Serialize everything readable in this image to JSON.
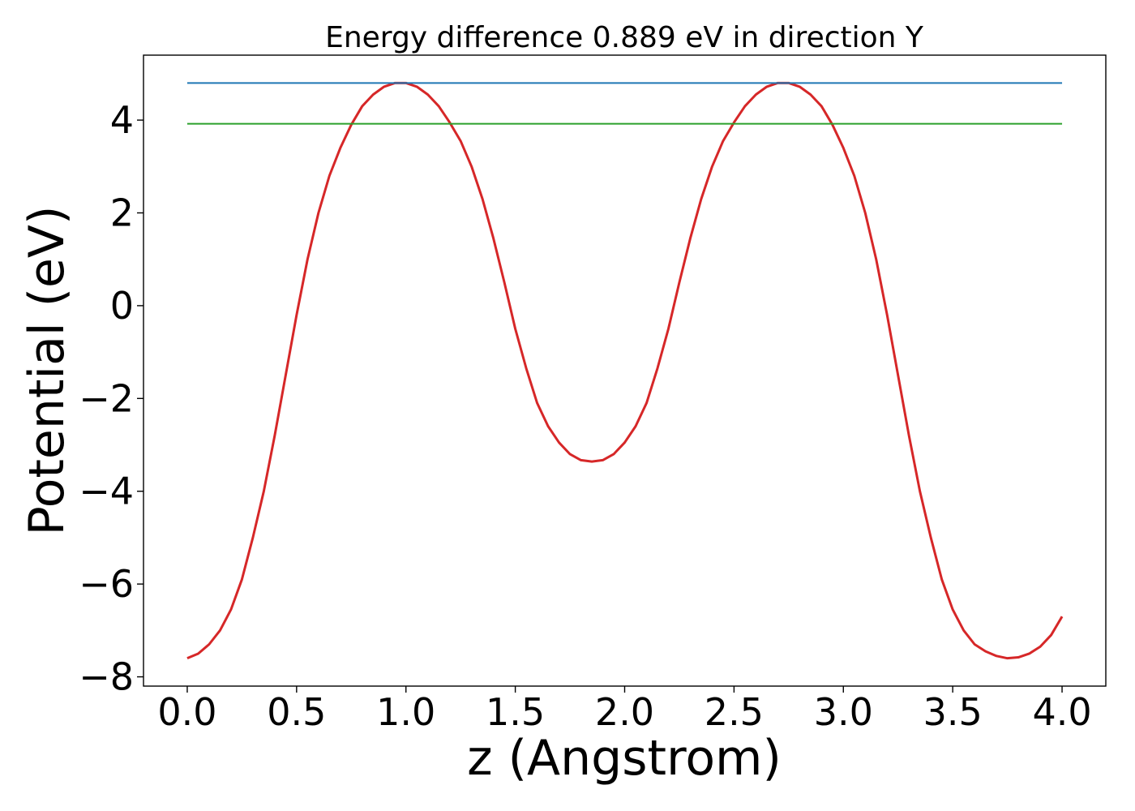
{
  "chart_data": {
    "type": "line",
    "title": "Energy difference 0.889 eV in direction Y",
    "xlabel": "z (Angstrom)",
    "ylabel": "Potential (eV)",
    "xlim": [
      -0.2,
      4.2
    ],
    "ylim": [
      -8.2,
      5.4
    ],
    "xticks": [
      0.0,
      0.5,
      1.0,
      1.5,
      2.0,
      2.5,
      3.0,
      3.5,
      4.0
    ],
    "xtick_labels": [
      "0.0",
      "0.5",
      "1.0",
      "1.5",
      "2.0",
      "2.5",
      "3.0",
      "3.5",
      "4.0"
    ],
    "yticks": [
      -8,
      -6,
      -4,
      -2,
      0,
      2,
      4
    ],
    "ytick_labels": [
      "−8",
      "−6",
      "−4",
      "−2",
      "0",
      "2",
      "4"
    ],
    "grid": false,
    "legend": "none",
    "series": [
      {
        "color": "#d62728",
        "kind": "curve",
        "x": [
          0.0,
          0.05,
          0.1,
          0.15,
          0.2,
          0.25,
          0.3,
          0.35,
          0.4,
          0.45,
          0.5,
          0.55,
          0.6,
          0.65,
          0.7,
          0.75,
          0.8,
          0.85,
          0.9,
          0.95,
          1.0,
          1.05,
          1.1,
          1.15,
          1.2,
          1.25,
          1.3,
          1.35,
          1.4,
          1.45,
          1.5,
          1.55,
          1.6,
          1.65,
          1.7,
          1.75,
          1.8,
          1.85,
          1.9,
          1.95,
          2.0,
          2.05,
          2.1,
          2.15,
          2.2,
          2.25,
          2.3,
          2.35,
          2.4,
          2.45,
          2.5,
          2.55,
          2.6,
          2.65,
          2.7,
          2.75,
          2.8,
          2.85,
          2.9,
          2.95,
          3.0,
          3.05,
          3.1,
          3.15,
          3.2,
          3.25,
          3.3,
          3.35,
          3.4,
          3.45,
          3.5,
          3.55,
          3.6,
          3.65,
          3.7,
          3.75,
          3.8,
          3.85,
          3.9,
          3.95,
          4.0
        ],
        "y": [
          -7.6,
          -7.5,
          -7.3,
          -7.0,
          -6.55,
          -5.9,
          -5.0,
          -4.0,
          -2.8,
          -1.5,
          -0.2,
          1.0,
          2.0,
          2.8,
          3.4,
          3.9,
          4.3,
          4.55,
          4.72,
          4.8,
          4.8,
          4.72,
          4.55,
          4.3,
          3.95,
          3.55,
          3.0,
          2.3,
          1.45,
          0.5,
          -0.5,
          -1.35,
          -2.1,
          -2.6,
          -2.95,
          -3.2,
          -3.33,
          -3.36,
          -3.33,
          -3.2,
          -2.95,
          -2.6,
          -2.1,
          -1.35,
          -0.5,
          0.5,
          1.45,
          2.3,
          3.0,
          3.55,
          3.95,
          4.3,
          4.55,
          4.72,
          4.8,
          4.8,
          4.72,
          4.55,
          4.3,
          3.9,
          3.4,
          2.8,
          2.0,
          1.0,
          -0.2,
          -1.5,
          -2.8,
          -4.0,
          -5.0,
          -5.9,
          -6.55,
          -7.0,
          -7.3,
          -7.45,
          -7.55,
          -7.6,
          -7.58,
          -7.5,
          -7.35,
          -7.1,
          -6.7
        ]
      },
      {
        "color": "#1f77b4",
        "kind": "hline",
        "x": [
          0.0,
          4.0
        ],
        "y": [
          4.8,
          4.8
        ]
      },
      {
        "color": "#2ca02c",
        "kind": "hline",
        "x": [
          0.0,
          4.0
        ],
        "y": [
          3.92,
          3.92
        ]
      }
    ]
  }
}
